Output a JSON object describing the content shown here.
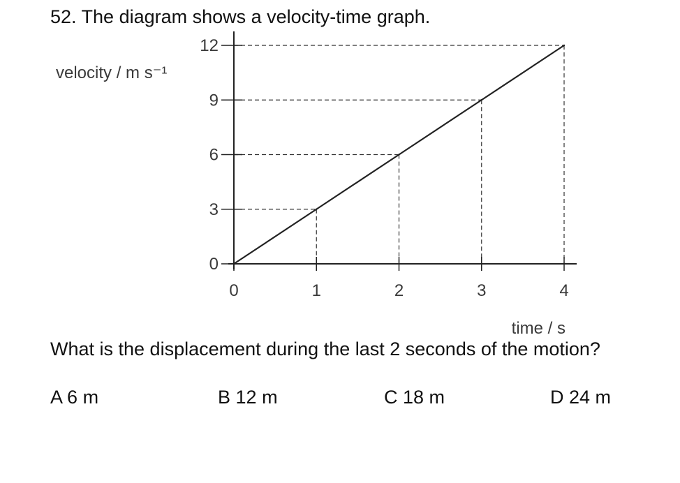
{
  "question": {
    "title": "52. The diagram shows a velocity-time graph.",
    "text": "What is the displacement during the last 2 seconds of the motion?",
    "options": [
      {
        "letter": "A",
        "text": "6 m"
      },
      {
        "letter": "B",
        "text": "12 m"
      },
      {
        "letter": "C",
        "text": "18 m"
      },
      {
        "letter": "D",
        "text": "24 m"
      }
    ]
  },
  "chart_data": {
    "type": "line",
    "x": [
      0,
      1,
      2,
      3,
      4
    ],
    "series": [
      {
        "values": [
          0,
          3,
          6,
          9,
          12
        ]
      }
    ],
    "xlabel": "time / s",
    "ylabel": "velocity / m s⁻¹",
    "xticks": [
      "0",
      "1",
      "2",
      "3",
      "4"
    ],
    "yticks": [
      "0",
      "3",
      "6",
      "9",
      "12"
    ],
    "xlim": [
      0,
      4
    ],
    "ylim": [
      0,
      12
    ],
    "grid": false,
    "dashed_guides": true,
    "line_color": "#222222"
  }
}
